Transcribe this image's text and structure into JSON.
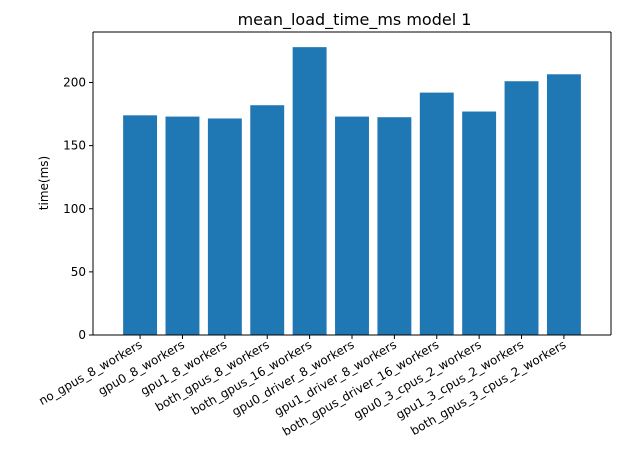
{
  "chart_data": {
    "type": "bar",
    "title": "mean_load_time_ms model 1",
    "xlabel": "",
    "ylabel": "time(ms)",
    "ylim": [
      0,
      240
    ],
    "yticks": [
      0,
      50,
      100,
      150,
      200
    ],
    "grid": false,
    "bar_color": "#1f77b4",
    "categories": [
      "no_gpus_8_workers",
      "gpu0_8_workers",
      "gpu1_8_workers",
      "both_gpus_8_workers",
      "both_gpus_16_workers",
      "gpu0_driver_8_workers",
      "gpu1_driver_8_workers",
      "both_gpus_driver_16_workers",
      "gpu0_3_cpus_2_workers",
      "gpu1_3_cpus_2_workers",
      "both_gpus_3_cpus_2_workers"
    ],
    "values": [
      174,
      173,
      171.5,
      182,
      228,
      173,
      172.5,
      192,
      177,
      201,
      206.5
    ]
  }
}
